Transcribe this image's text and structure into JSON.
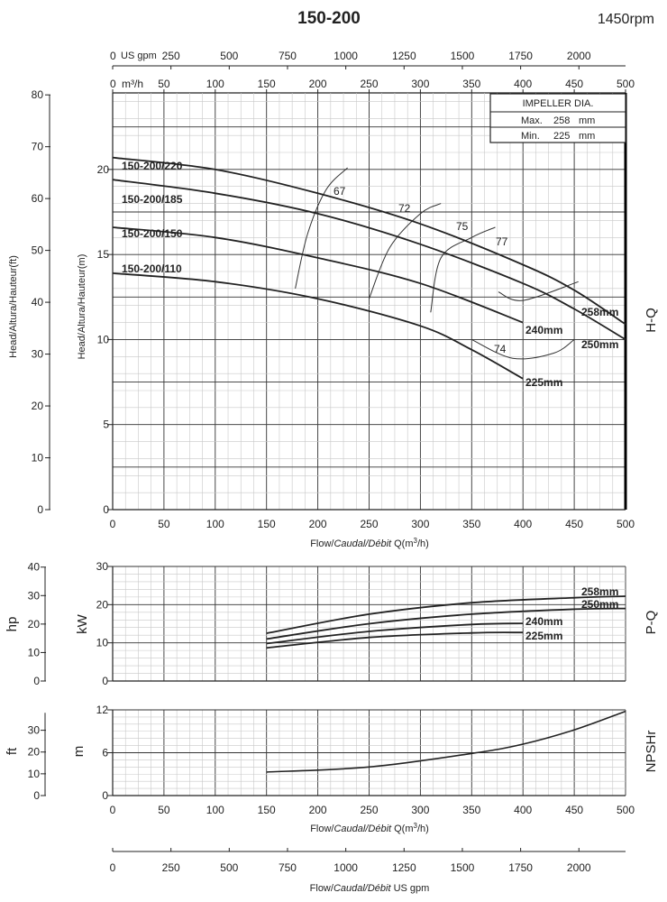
{
  "header": {
    "title": "150-200",
    "speed": "1450rpm"
  },
  "chart_data": [
    {
      "type": "line",
      "name": "H-Q",
      "side_label": "H-Q",
      "x_range": [
        0,
        500
      ],
      "x_ticks": [
        0,
        50,
        100,
        150,
        200,
        250,
        300,
        350,
        400,
        450,
        500
      ],
      "xlabel_parts": [
        "Flow/",
        "Caudal/Débit",
        " Q(m",
        "3",
        "/h)"
      ],
      "ylabel": "Head/Altura/Hauteur(m)",
      "ylim": [
        0,
        24.5
      ],
      "y_ticks": [
        0,
        5,
        10,
        15,
        20
      ],
      "y2label": "Head/Altura/Hauteur(ft)",
      "y2_ticks": [
        0,
        10,
        20,
        30,
        40,
        50,
        60,
        70,
        80
      ],
      "top_axis_gpm": {
        "label": "US gpm",
        "ticks": [
          0,
          250,
          500,
          750,
          1000,
          1250,
          1500,
          1750,
          2000
        ]
      },
      "top_axis_m3h": {
        "label": "m³/h",
        "ticks": [
          0,
          50,
          100,
          150,
          200,
          250,
          300,
          350,
          400,
          450,
          500
        ]
      },
      "impeller_box": {
        "title": "IMPELLER DIA.",
        "max_label": "Max.",
        "max_value": "258",
        "min_label": "Min.",
        "min_value": "225",
        "unit": "mm"
      },
      "series": [
        {
          "name": "258mm",
          "x": [
            0,
            100,
            200,
            300,
            400,
            450,
            500
          ],
          "y": [
            20.7,
            20.0,
            18.6,
            16.8,
            14.4,
            12.9,
            10.9
          ]
        },
        {
          "name": "250mm",
          "x": [
            0,
            100,
            200,
            300,
            400,
            450,
            500
          ],
          "y": [
            19.4,
            18.6,
            17.4,
            15.6,
            13.3,
            11.8,
            10.0
          ]
        },
        {
          "name": "240mm",
          "x": [
            0,
            100,
            200,
            300,
            400
          ],
          "y": [
            16.6,
            16.0,
            14.8,
            13.3,
            11.0
          ]
        },
        {
          "name": "225mm",
          "x": [
            0,
            100,
            200,
            300,
            350,
            400
          ],
          "y": [
            13.9,
            13.4,
            12.4,
            10.8,
            9.4,
            7.7
          ]
        }
      ],
      "model_labels": [
        "150-200/220",
        "150-200/185",
        "150-200/150",
        "150-200/110"
      ],
      "efficiency_contours": [
        {
          "label": "67",
          "x": [
            178,
            190,
            208,
            229
          ],
          "y": [
            13.0,
            16.2,
            18.8,
            20.1
          ]
        },
        {
          "label": "72",
          "x": [
            250,
            270,
            300,
            320
          ],
          "y": [
            12.4,
            15.4,
            17.4,
            18.0
          ]
        },
        {
          "label": "75",
          "x": [
            310,
            320,
            350,
            373
          ],
          "y": [
            11.6,
            14.8,
            16.0,
            16.6
          ]
        },
        {
          "label": "77",
          "x": [
            376,
            400,
            454
          ],
          "y": [
            12.8,
            12.3,
            13.4
          ]
        },
        {
          "label": "74",
          "x": [
            350,
            390,
            430,
            450
          ],
          "y": [
            10.0,
            8.9,
            9.2,
            10.0
          ]
        }
      ]
    },
    {
      "type": "line",
      "name": "P-Q",
      "side_label": "P-Q",
      "x_range": [
        0,
        500
      ],
      "ylabel": "kW",
      "ylim": [
        0,
        30
      ],
      "y_ticks": [
        0,
        10,
        20,
        30
      ],
      "y2label": "hp",
      "y2_ticks": [
        0,
        10,
        20,
        30,
        40
      ],
      "series": [
        {
          "name": "258mm",
          "x": [
            150,
            250,
            350,
            450,
            500
          ],
          "y": [
            12.5,
            17.5,
            20.5,
            21.8,
            22.2
          ]
        },
        {
          "name": "250mm",
          "x": [
            150,
            250,
            350,
            450,
            500
          ],
          "y": [
            11.0,
            15.0,
            17.5,
            18.8,
            19.0
          ]
        },
        {
          "name": "240mm",
          "x": [
            150,
            250,
            350,
            400
          ],
          "y": [
            9.8,
            13.0,
            14.8,
            15.1
          ]
        },
        {
          "name": "225mm",
          "x": [
            150,
            250,
            350,
            400
          ],
          "y": [
            8.7,
            11.4,
            12.6,
            12.7
          ]
        }
      ]
    },
    {
      "type": "line",
      "name": "NPSHr",
      "side_label": "NPSHr",
      "x_range": [
        0,
        500
      ],
      "x_ticks": [
        0,
        50,
        100,
        150,
        200,
        250,
        300,
        350,
        400,
        450,
        500
      ],
      "xlabel_parts": [
        "Flow/",
        "Caudal/Débit",
        " Q(m",
        "3",
        "/h)"
      ],
      "ylabel": "m",
      "ylim": [
        0,
        12
      ],
      "y_ticks": [
        0,
        6,
        12
      ],
      "y2label": "ft",
      "y2_ticks": [
        0,
        10,
        20,
        30
      ],
      "series": [
        {
          "name": "NPSHr",
          "x": [
            150,
            250,
            350,
            400,
            450,
            500
          ],
          "y": [
            3.3,
            4.0,
            5.9,
            7.2,
            9.2,
            11.8
          ]
        }
      ]
    },
    {
      "type": "axis",
      "name": "US gpm scale",
      "xlabel_parts": [
        "Flow/",
        "Caudal/Débit",
        "   US gpm"
      ],
      "ticks": [
        0,
        250,
        500,
        750,
        1000,
        1250,
        1500,
        1750,
        2000
      ]
    }
  ]
}
